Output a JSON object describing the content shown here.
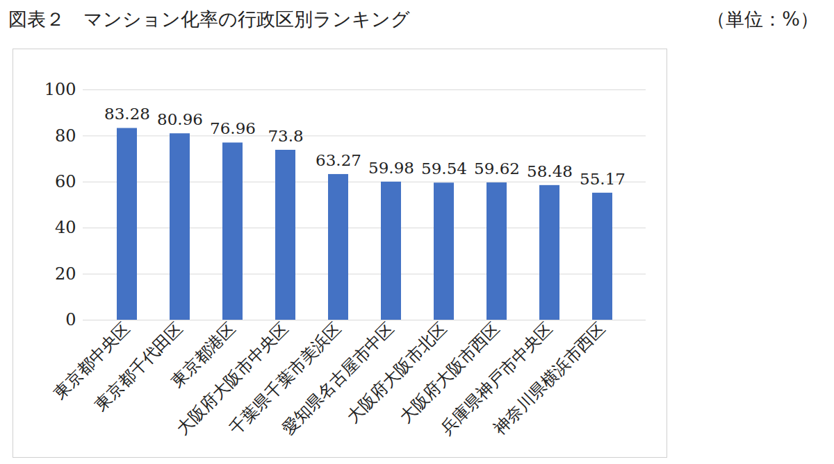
{
  "chart_data": {
    "type": "bar",
    "title": "図表２　マンション化率の行政区別ランキング",
    "ylabel": "（単位：%）",
    "categories": [
      "東京都中央区",
      "東京都千代田区",
      "東京都港区",
      "大阪府大阪市中央区",
      "千葉県千葉市美浜区",
      "愛知県名古屋市中区",
      "大阪府大阪市北区",
      "大阪府大阪市西区",
      "兵庫県神戸市中央区",
      "神奈川県横浜市西区"
    ],
    "values": [
      83.28,
      80.96,
      76.96,
      73.8,
      63.27,
      59.98,
      59.54,
      59.62,
      58.48,
      55.17
    ],
    "color": "#4472c4",
    "ylim": [
      0,
      100
    ],
    "yticks": [
      0,
      20,
      40,
      60,
      80,
      100
    ],
    "grid": true,
    "data_labels": true
  }
}
